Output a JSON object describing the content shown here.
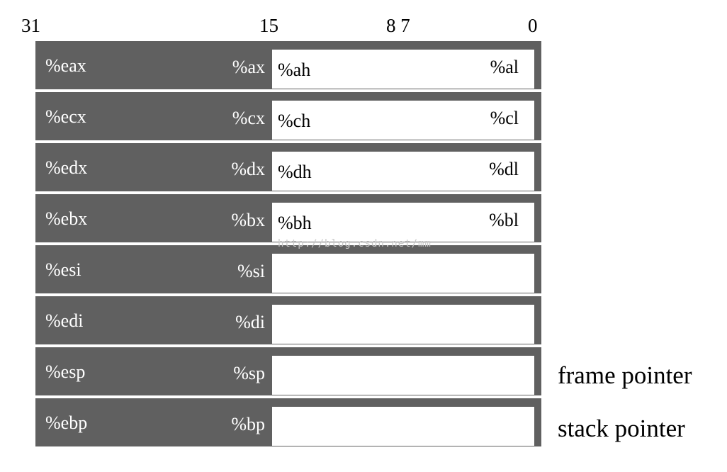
{
  "bit_positions": {
    "b31": "31",
    "b15": "15",
    "b87": "8 7",
    "b0": "0"
  },
  "registers": [
    {
      "r32": "%eax",
      "r16": "%ax",
      "hi": "%ah",
      "lo": "%al"
    },
    {
      "r32": "%ecx",
      "r16": "%cx",
      "hi": "%ch",
      "lo": "%cl"
    },
    {
      "r32": "%edx",
      "r16": "%dx",
      "hi": "%dh",
      "lo": "%dl"
    },
    {
      "r32": "%ebx",
      "r16": "%bx",
      "hi": "%bh",
      "lo": "%bl"
    },
    {
      "r32": "%esi",
      "r16": "%si",
      "hi": "",
      "lo": ""
    },
    {
      "r32": "%edi",
      "r16": "%di",
      "hi": "",
      "lo": ""
    },
    {
      "r32": "%esp",
      "r16": "%sp",
      "hi": "",
      "lo": ""
    },
    {
      "r32": "%ebp",
      "r16": "%bp",
      "hi": "",
      "lo": ""
    }
  ],
  "side_labels": [
    "frame pointer",
    "stack pointer"
  ],
  "watermark": "http://blog.csdn.net/mm",
  "colors": {
    "register_bg": "#606060",
    "register_text": "#ffffff",
    "low_bytes_bg": "#ffffff"
  }
}
